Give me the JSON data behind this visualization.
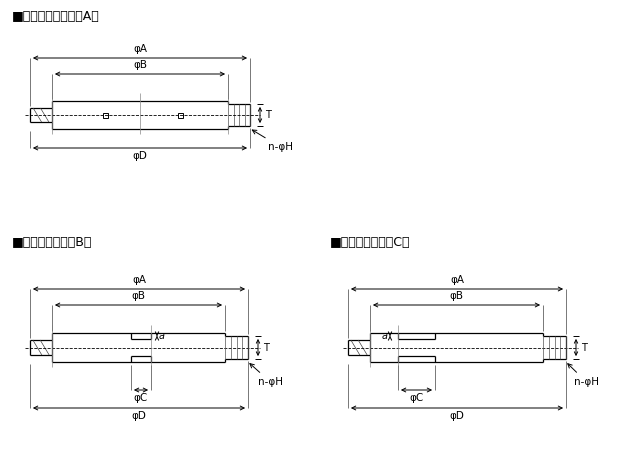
{
  "title_A": "■ブランクタイプ（A）",
  "title_B": "■穴あきタイプ（B）",
  "title_C": "■穴あきタイプ（C）",
  "phi": "φ",
  "bg_color": "#ffffff",
  "line_color": "#000000",
  "font_size_title": 9.0,
  "font_size_dim": 7.5,
  "font_size_label": 7.5
}
